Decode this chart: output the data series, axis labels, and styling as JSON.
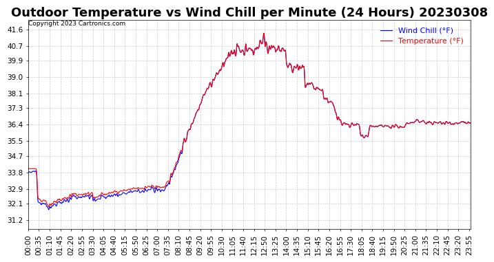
{
  "title": "Outdoor Temperature vs Wind Chill per Minute (24 Hours) 20230308",
  "copyright": "Copyright 2023 Cartronics.com",
  "legend_wind_chill": "Wind Chill (°F)",
  "legend_temperature": "Temperature (°F)",
  "wind_chill_color": "blue",
  "temperature_color": "red",
  "background_color": "#ffffff",
  "grid_color": "#cccccc",
  "yticks": [
    31.2,
    32.1,
    32.9,
    33.8,
    34.7,
    35.5,
    36.4,
    37.3,
    38.1,
    39.0,
    39.9,
    40.7,
    41.6
  ],
  "ylim": [
    30.7,
    42.1
  ],
  "title_fontsize": 13,
  "axis_fontsize": 7.5,
  "legend_fontsize": 8
}
